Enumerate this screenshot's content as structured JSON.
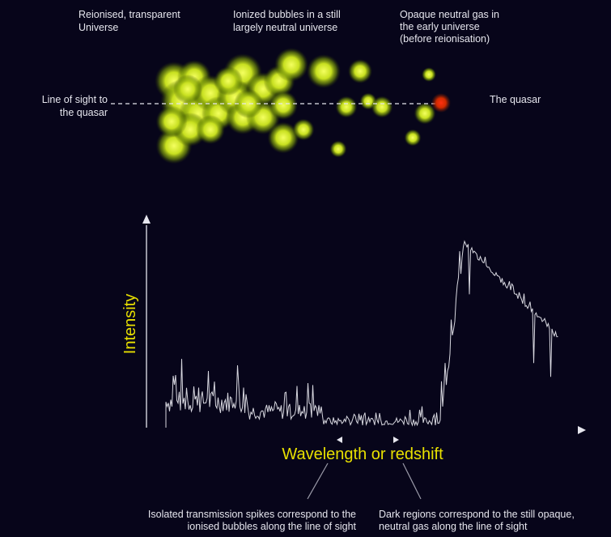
{
  "labels": {
    "reionised": [
      "Reionised, transparent",
      "Universe"
    ],
    "bubbles": [
      "Ionized bubbles in a still",
      "largely neutral universe"
    ],
    "opaque": [
      "Opaque neutral gas in",
      "the early universe",
      "(before reionisation)"
    ],
    "line_of_sight": [
      "Line of sight to",
      "the quasar"
    ],
    "quasar": "The quasar"
  },
  "axes": {
    "y_label": "Intensity",
    "x_label": "Wavelength or redshift"
  },
  "annotations": {
    "spikes": [
      "Isolated transmission spikes correspond to the",
      "ionised bubbles along the line of sight"
    ],
    "dark": [
      "Dark regions correspond to the still opaque,",
      "neutral gas along the line of sight"
    ]
  }
}
